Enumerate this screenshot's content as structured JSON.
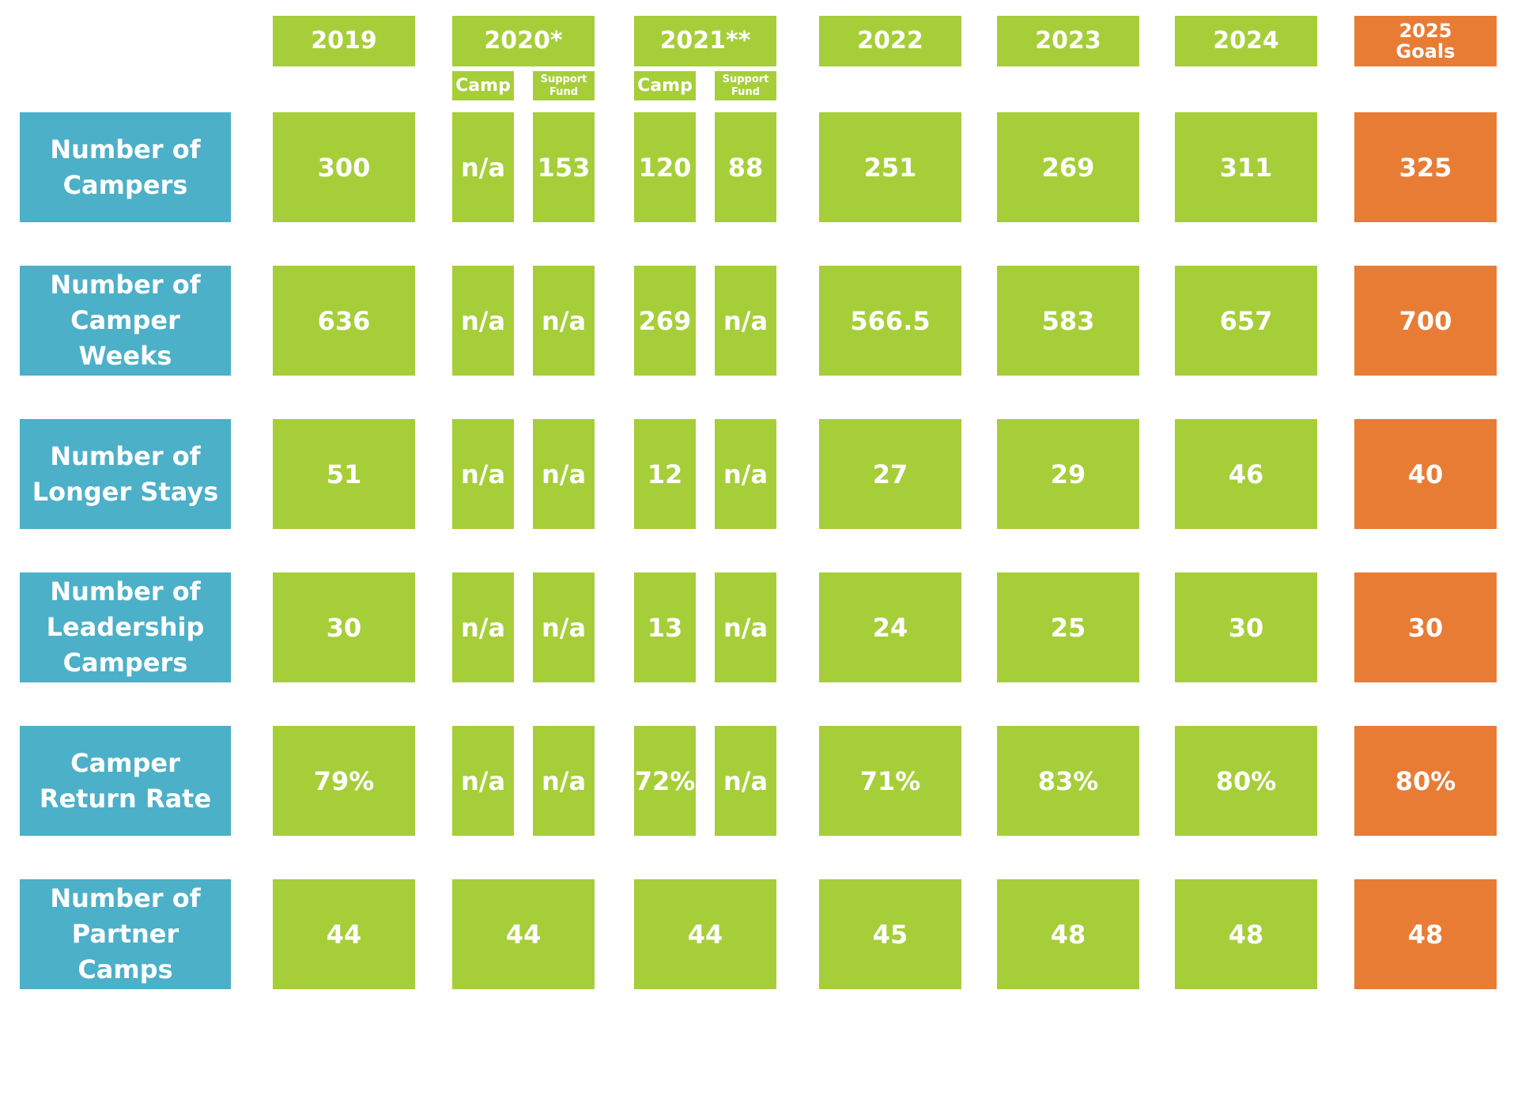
{
  "colors": {
    "green": "#a6ce39",
    "blue": "#4bb0c8",
    "orange": "#e87c35",
    "text": "#ffffff",
    "background": "#ffffff"
  },
  "chart_data": {
    "type": "table",
    "columns": [
      {
        "key": "2019",
        "label": "2019",
        "subcolumns": []
      },
      {
        "key": "2020",
        "label": "2020*",
        "subcolumns": [
          "Camp",
          "Support\nFund"
        ]
      },
      {
        "key": "2021",
        "label": "2021**",
        "subcolumns": [
          "Camp",
          "Support\nFund"
        ]
      },
      {
        "key": "2022",
        "label": "2022",
        "subcolumns": []
      },
      {
        "key": "2023",
        "label": "2023",
        "subcolumns": []
      },
      {
        "key": "2024",
        "label": "2024",
        "subcolumns": []
      },
      {
        "key": "2025",
        "label": "2025\nGoals",
        "subcolumns": [],
        "goal": true
      }
    ],
    "rows": [
      {
        "label": "Number of\nCampers",
        "values": {
          "2019": "300",
          "2020": [
            "n/a",
            "153"
          ],
          "2021": [
            "120",
            "88"
          ],
          "2022": "251",
          "2023": "269",
          "2024": "311",
          "2025": "325"
        }
      },
      {
        "label": "Number of\nCamper Weeks",
        "values": {
          "2019": "636",
          "2020": [
            "n/a",
            "n/a"
          ],
          "2021": [
            "269",
            "n/a"
          ],
          "2022": "566.5",
          "2023": "583",
          "2024": "657",
          "2025": "700"
        }
      },
      {
        "label": "Number of\nLonger Stays",
        "values": {
          "2019": "51",
          "2020": [
            "n/a",
            "n/a"
          ],
          "2021": [
            "12",
            "n/a"
          ],
          "2022": "27",
          "2023": "29",
          "2024": "46",
          "2025": "40"
        }
      },
      {
        "label": "Number of\nLeadership\nCampers",
        "values": {
          "2019": "30",
          "2020": [
            "n/a",
            "n/a"
          ],
          "2021": [
            "13",
            "n/a"
          ],
          "2022": "24",
          "2023": "25",
          "2024": "30",
          "2025": "30"
        }
      },
      {
        "label": "Camper\nReturn Rate",
        "values": {
          "2019": "79%",
          "2020": [
            "n/a",
            "n/a"
          ],
          "2021": [
            "72%",
            "n/a"
          ],
          "2022": "71%",
          "2023": "83%",
          "2024": "80%",
          "2025": "80%"
        }
      },
      {
        "label": "Number of\nPartner Camps",
        "values": {
          "2019": "44",
          "2020": "44",
          "2021": "44",
          "2022": "45",
          "2023": "48",
          "2024": "48",
          "2025": "48"
        }
      }
    ]
  }
}
